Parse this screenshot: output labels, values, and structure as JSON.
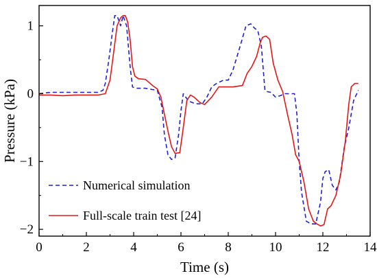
{
  "chart_data": {
    "type": "line",
    "title": "",
    "xlabel": "Time (s)",
    "ylabel": "Pressure (kPa)",
    "xlim": [
      0,
      14
    ],
    "ylim": [
      -2.1,
      1.3
    ],
    "xticks": [
      0,
      2,
      4,
      6,
      8,
      10,
      12,
      14
    ],
    "yticks": [
      1,
      0,
      -1,
      -2
    ],
    "ytick_labels": [
      "1",
      "0",
      "−1",
      "−2"
    ],
    "grid": false,
    "legend_position": "bottom-left",
    "series": [
      {
        "name": "Numerical simulation",
        "color": "#1f1fd6",
        "style": "dashed",
        "x": [
          0,
          0.5,
          1,
          1.5,
          2,
          2.5,
          2.7,
          2.8,
          2.95,
          3.1,
          3.2,
          3.3,
          3.45,
          3.55,
          3.7,
          3.85,
          3.95,
          4.1,
          4.3,
          4.5,
          4.8,
          5.0,
          5.2,
          5.3,
          5.45,
          5.6,
          5.75,
          5.9,
          6.0,
          6.1,
          6.2,
          6.3,
          6.4,
          6.55,
          6.7,
          6.9,
          7.1,
          7.3,
          7.5,
          7.8,
          8.0,
          8.2,
          8.5,
          8.75,
          8.95,
          9.1,
          9.25,
          9.4,
          9.55,
          9.65,
          9.8,
          10.0,
          10.2,
          10.4,
          10.6,
          10.8,
          10.9,
          11.0,
          11.1,
          11.3,
          11.5,
          11.7,
          11.9,
          12.0,
          12.1,
          12.25,
          12.4,
          12.55,
          12.7,
          12.9,
          13.1,
          13.3,
          13.5
        ],
        "y": [
          0.0,
          0.02,
          0.02,
          0.02,
          0.02,
          0.02,
          0.05,
          0.15,
          0.5,
          0.9,
          1.15,
          1.15,
          1.0,
          1.15,
          1.0,
          0.4,
          0.1,
          0.08,
          0.08,
          0.08,
          0.06,
          0.05,
          -0.2,
          -0.6,
          -0.9,
          -0.97,
          -0.95,
          -0.6,
          -0.25,
          0.0,
          -0.05,
          -0.1,
          -0.12,
          -0.14,
          -0.15,
          -0.15,
          -0.05,
          0.1,
          0.15,
          0.2,
          0.2,
          0.35,
          0.7,
          1.0,
          1.03,
          0.97,
          0.93,
          0.7,
          0.05,
          0.03,
          0.02,
          -0.05,
          -0.03,
          0.0,
          0.0,
          0.0,
          -0.3,
          -1.0,
          -1.45,
          -1.88,
          -1.92,
          -1.92,
          -1.6,
          -1.25,
          -1.15,
          -1.12,
          -1.35,
          -1.42,
          -1.3,
          -0.8,
          -0.5,
          -0.1,
          0.05
        ]
      },
      {
        "name": "Full-scale train test [24]",
        "color": "#e51616",
        "style": "solid",
        "x": [
          0,
          0.5,
          1,
          1.5,
          2,
          2.5,
          2.8,
          3.0,
          3.15,
          3.3,
          3.45,
          3.55,
          3.65,
          3.75,
          3.85,
          3.95,
          4.05,
          4.2,
          4.5,
          4.8,
          5.0,
          5.15,
          5.3,
          5.45,
          5.6,
          5.75,
          5.95,
          6.1,
          6.25,
          6.4,
          6.55,
          6.8,
          7.0,
          7.3,
          7.6,
          7.8,
          8.2,
          8.6,
          8.8,
          9.0,
          9.2,
          9.35,
          9.45,
          9.6,
          9.75,
          9.9,
          10.1,
          10.3,
          10.5,
          10.7,
          10.85,
          11.0,
          11.2,
          11.4,
          11.6,
          11.75,
          11.9,
          12.05,
          12.2,
          12.35,
          12.55,
          12.75,
          12.95,
          13.1,
          13.2,
          13.35,
          13.5
        ],
        "y": [
          -0.02,
          -0.02,
          -0.03,
          -0.02,
          -0.02,
          -0.02,
          0.0,
          0.2,
          0.6,
          1.0,
          1.12,
          1.15,
          1.15,
          1.05,
          0.8,
          0.4,
          0.26,
          0.22,
          0.21,
          0.12,
          0.07,
          -0.05,
          -0.3,
          -0.55,
          -0.78,
          -0.88,
          -0.87,
          -0.5,
          -0.1,
          -0.02,
          -0.05,
          -0.13,
          -0.16,
          -0.05,
          0.1,
          0.1,
          0.1,
          0.12,
          0.3,
          0.4,
          0.55,
          0.75,
          0.83,
          0.85,
          0.8,
          0.45,
          0.2,
          0.03,
          -0.3,
          -0.6,
          -0.9,
          -1.0,
          -1.3,
          -1.7,
          -1.88,
          -1.92,
          -1.95,
          -1.93,
          -1.7,
          -1.65,
          -1.5,
          -1.2,
          -0.7,
          -0.15,
          0.1,
          0.15,
          0.15
        ]
      }
    ]
  }
}
